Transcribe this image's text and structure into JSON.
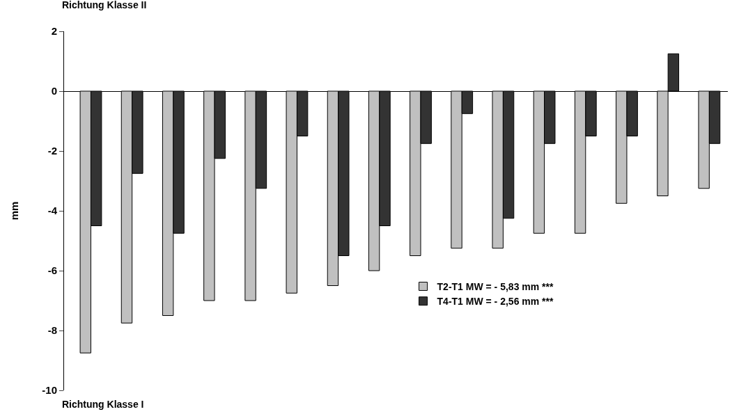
{
  "chart_data": {
    "type": "bar",
    "ylabel": "mm",
    "annotations": [
      "Richtung Klasse II",
      "Richtung Klasse I"
    ],
    "categories": [
      null,
      null,
      null,
      null,
      null,
      null,
      null,
      null,
      null,
      null,
      null,
      null,
      null,
      null,
      null,
      null
    ],
    "series": [
      {
        "name": "T2-T1 MW = - 5,83 mm ***",
        "color": "#c0c0c0",
        "values": [
          -8.75,
          -7.75,
          -7.5,
          -7,
          -7,
          -6.75,
          -6.5,
          -6,
          -5.5,
          -5.25,
          -5.25,
          -4.75,
          -4.75,
          -3.75,
          -3.5,
          -3.25
        ]
      },
      {
        "name": "T4-T1 MW = - 2,56 mm ***",
        "color": "#333333",
        "values": [
          -4.5,
          -2.75,
          -4.75,
          -2.25,
          -3.25,
          -1.5,
          -5.5,
          -4.5,
          -1.75,
          -0.75,
          -4.25,
          -1.75,
          -1.5,
          -1.5,
          1.25,
          -1.75
        ]
      }
    ],
    "ylim": [
      -10,
      2
    ],
    "yticks": [
      -10,
      -8,
      -6,
      -4,
      -2,
      0,
      2
    ],
    "legend": "bottom right",
    "tick_labels": "y"
  }
}
